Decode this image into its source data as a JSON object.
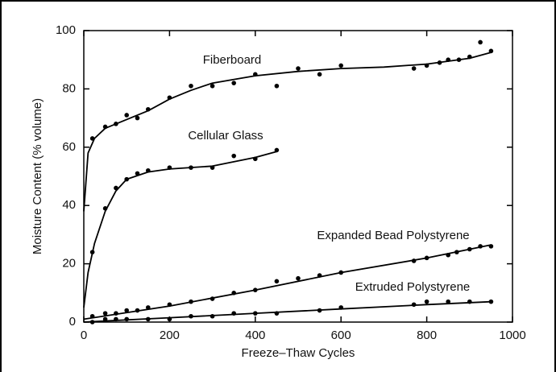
{
  "chart_data": {
    "type": "scatter",
    "xlabel": "Freeze–Thaw Cycles",
    "ylabel": "Moisture Content (% volume)",
    "xlim": [
      0,
      1000
    ],
    "xticks": [
      0,
      200,
      400,
      600,
      800,
      1000
    ],
    "ylim": [
      0,
      100
    ],
    "yticks": [
      0,
      20,
      40,
      60,
      80,
      100
    ],
    "color": "#000000",
    "series": [
      {
        "name": "Fiberboard",
        "x": [
          20,
          50,
          75,
          100,
          125,
          150,
          200,
          250,
          300,
          350,
          400,
          450,
          500,
          550,
          600,
          770,
          800,
          830,
          850,
          875,
          900,
          925,
          950
        ],
        "values": [
          63,
          67,
          68,
          71,
          70,
          73,
          77,
          81,
          81,
          82,
          85,
          81,
          87,
          85,
          88,
          87,
          88,
          89,
          90,
          90,
          91,
          96,
          93
        ],
        "curve": {
          "x": [
            0,
            10,
            25,
            50,
            100,
            150,
            200,
            250,
            300,
            400,
            500,
            600,
            700,
            800,
            900,
            950
          ],
          "values": [
            38,
            58,
            63,
            66.5,
            69.5,
            72.5,
            76.5,
            79.5,
            82,
            84.5,
            86,
            87,
            87.5,
            88.5,
            90.5,
            92.5
          ]
        }
      },
      {
        "name": "Cellular Glass",
        "x": [
          20,
          50,
          75,
          100,
          125,
          150,
          200,
          250,
          300,
          350,
          400,
          450
        ],
        "values": [
          24,
          39,
          46,
          49,
          51,
          52,
          53,
          53,
          53,
          57,
          56,
          59
        ],
        "curve": {
          "x": [
            0,
            10,
            25,
            50,
            75,
            100,
            150,
            200,
            300,
            400,
            450
          ],
          "values": [
            5,
            17,
            27,
            38,
            45,
            49,
            51.5,
            52.5,
            53.5,
            56.5,
            58.5
          ]
        }
      },
      {
        "name": "Expanded Bead Polystyrene",
        "x": [
          20,
          50,
          75,
          100,
          125,
          150,
          200,
          250,
          300,
          350,
          400,
          450,
          500,
          550,
          600,
          770,
          800,
          850,
          870,
          900,
          925,
          950
        ],
        "values": [
          2,
          3,
          3,
          4,
          4,
          5,
          6,
          7,
          8,
          10,
          11,
          14,
          15,
          16,
          17,
          21,
          22,
          23,
          24,
          25,
          26,
          26
        ],
        "curve": {
          "x": [
            0,
            200,
            400,
            600,
            800,
            950
          ],
          "values": [
            1,
            5.5,
            11,
            17,
            22,
            26.5
          ]
        }
      },
      {
        "name": "Extruded Polystyrene",
        "x": [
          20,
          50,
          75,
          100,
          150,
          200,
          250,
          300,
          350,
          400,
          450,
          550,
          600,
          770,
          800,
          850,
          900,
          950
        ],
        "values": [
          0,
          1,
          1,
          1,
          1,
          1,
          2,
          2,
          3,
          3,
          3,
          4,
          5,
          6,
          7,
          7,
          7,
          7
        ],
        "curve": {
          "x": [
            0,
            200,
            400,
            600,
            800,
            950
          ],
          "values": [
            0,
            1.5,
            3,
            4.5,
            6,
            7
          ]
        }
      }
    ]
  }
}
